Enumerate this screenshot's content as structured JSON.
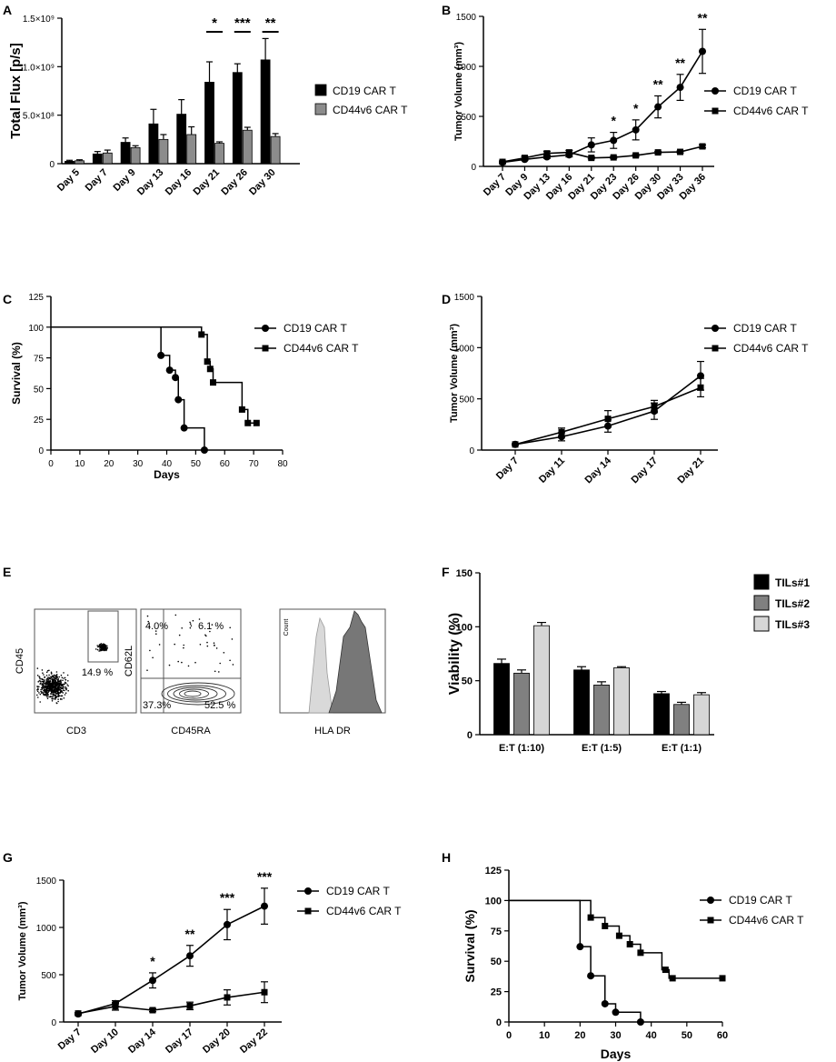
{
  "chart_data": [
    {
      "panel": "A",
      "type": "bar",
      "ylabel": "Total Flux [p/s]",
      "ytick_labels": [
        "0",
        "5.0×10⁸",
        "1.0×10⁹",
        "1.5×10⁹"
      ],
      "ylim": [
        0,
        1500000000
      ],
      "yticks": [
        0,
        500000000,
        1000000000,
        1500000000
      ],
      "categories": [
        "Day 5",
        "Day 7",
        "Day 9",
        "Day 13",
        "Day 16",
        "Day 21",
        "Day 26",
        "Day 30"
      ],
      "series": [
        {
          "name": "CD19 CAR T",
          "color": "#000000",
          "values": [
            25000000,
            100000000,
            220000000,
            410000000,
            510000000,
            840000000,
            940000000,
            1070000000
          ],
          "errors": [
            10000000,
            25000000,
            45000000,
            150000000,
            150000000,
            210000000,
            90000000,
            220000000
          ]
        },
        {
          "name": "CD44v6 CAR T",
          "color": "#8c8c8c",
          "values": [
            30000000,
            110000000,
            165000000,
            250000000,
            300000000,
            210000000,
            345000000,
            280000000
          ],
          "errors": [
            10000000,
            30000000,
            20000000,
            50000000,
            80000000,
            15000000,
            30000000,
            30000000
          ]
        }
      ],
      "significance": [
        {
          "category": "Day 21",
          "label": "*"
        },
        {
          "category": "Day 26",
          "label": "***"
        },
        {
          "category": "Day 30",
          "label": "**"
        }
      ],
      "legend_position": "right"
    },
    {
      "panel": "B",
      "type": "line",
      "ylabel": "Tumor Volume (mm³)",
      "ylim": [
        0,
        1500
      ],
      "yticks": [
        0,
        500,
        1000,
        1500
      ],
      "categories": [
        "Day 7",
        "Day 9",
        "Day 13",
        "Day 16",
        "Day 21",
        "Day 23",
        "Day 26",
        "Day 30",
        "Day 33",
        "Day 36"
      ],
      "series": [
        {
          "name": "CD19 CAR T",
          "marker": "circle",
          "values": [
            40,
            70,
            95,
            115,
            215,
            260,
            365,
            595,
            790,
            1150
          ],
          "errors": [
            10,
            10,
            15,
            20,
            70,
            80,
            100,
            110,
            130,
            220
          ]
        },
        {
          "name": "CD44v6 CAR T",
          "marker": "square",
          "values": [
            45,
            85,
            130,
            140,
            85,
            90,
            110,
            140,
            145,
            200
          ],
          "errors": [
            10,
            15,
            20,
            20,
            10,
            10,
            10,
            10,
            10,
            15
          ]
        }
      ],
      "significance": [
        {
          "category": "Day 23",
          "label": "*"
        },
        {
          "category": "Day 26",
          "label": "*"
        },
        {
          "category": "Day 30",
          "label": "**"
        },
        {
          "category": "Day 33",
          "label": "**"
        },
        {
          "category": "Day 36",
          "label": "**"
        }
      ],
      "legend_position": "right"
    },
    {
      "panel": "C",
      "type": "line",
      "subtype": "survival",
      "xlabel": "Days",
      "ylabel": "Survival (%)",
      "xlim": [
        0,
        80
      ],
      "xticks": [
        0,
        10,
        20,
        30,
        40,
        50,
        60,
        70,
        80
      ],
      "ylim": [
        0,
        125
      ],
      "yticks": [
        0,
        25,
        50,
        75,
        100,
        125
      ],
      "series": [
        {
          "name": "CD19 CAR T",
          "marker": "circle",
          "steps": [
            [
              0,
              100
            ],
            [
              38,
              100
            ],
            [
              38,
              77
            ],
            [
              41,
              77
            ],
            [
              41,
              65
            ],
            [
              43,
              65
            ],
            [
              43,
              59
            ],
            [
              44,
              59
            ],
            [
              44,
              41
            ],
            [
              46,
              41
            ],
            [
              46,
              18
            ],
            [
              53,
              18
            ],
            [
              53,
              0
            ]
          ],
          "points": [
            [
              38,
              77
            ],
            [
              41,
              65
            ],
            [
              43,
              59
            ],
            [
              44,
              41
            ],
            [
              46,
              18
            ],
            [
              53,
              0
            ]
          ]
        },
        {
          "name": "CD44v6 CAR T",
          "marker": "square",
          "steps": [
            [
              0,
              100
            ],
            [
              52,
              100
            ],
            [
              52,
              94
            ],
            [
              54,
              94
            ],
            [
              54,
              72
            ],
            [
              55,
              72
            ],
            [
              55,
              66
            ],
            [
              56,
              66
            ],
            [
              56,
              55
            ],
            [
              66,
              55
            ],
            [
              66,
              33
            ],
            [
              68,
              33
            ],
            [
              68,
              22
            ],
            [
              72,
              22
            ]
          ],
          "points": [
            [
              52,
              94
            ],
            [
              54,
              72
            ],
            [
              55,
              66
            ],
            [
              56,
              55
            ],
            [
              66,
              33
            ],
            [
              68,
              22
            ],
            [
              71,
              22
            ]
          ]
        }
      ],
      "legend_position": "right"
    },
    {
      "panel": "D",
      "type": "line",
      "ylabel": "Tumor Volume (mm³)",
      "ylim": [
        0,
        1500
      ],
      "yticks": [
        0,
        500,
        1000,
        1500
      ],
      "categories": [
        "Day 7",
        "Day 11",
        "Day 14",
        "Day 17",
        "Day 21"
      ],
      "series": [
        {
          "name": "CD19 CAR T",
          "marker": "circle",
          "values": [
            55,
            130,
            235,
            380,
            725
          ],
          "errors": [
            5,
            40,
            60,
            80,
            140
          ]
        },
        {
          "name": "CD44v6 CAR T",
          "marker": "square",
          "values": [
            55,
            175,
            305,
            425,
            610
          ],
          "errors": [
            5,
            40,
            80,
            60,
            90
          ]
        }
      ],
      "legend_position": "right"
    },
    {
      "panel": "E",
      "type": "scatter",
      "subtype": "flow cytometry",
      "plots": [
        {
          "xlabel": "CD3",
          "ylabel": "CD45",
          "gate_label": "14.9 %"
        },
        {
          "xlabel": "CD45RA",
          "ylabel": "CD62L",
          "quadrants": [
            "4.0%",
            "6.1 %",
            "37.3%",
            "52.5 %"
          ]
        },
        {
          "xlabel": "HLA DR",
          "ylabel": "Count"
        }
      ]
    },
    {
      "panel": "F",
      "type": "bar",
      "ylabel": "Viability (%)",
      "ylim": [
        0,
        150
      ],
      "yticks": [
        0,
        50,
        100,
        150
      ],
      "categories": [
        "E:T (1:10)",
        "E:T (1:5)",
        "E:T (1:1)"
      ],
      "series": [
        {
          "name": "TILs#1",
          "color": "#000000",
          "values": [
            66,
            60,
            38
          ],
          "errors": [
            4,
            3,
            2
          ]
        },
        {
          "name": "TILs#2",
          "color": "#808080",
          "values": [
            57,
            46,
            28
          ],
          "errors": [
            3,
            3,
            2
          ]
        },
        {
          "name": "TILs#3",
          "color": "#d6d6d6",
          "values": [
            101,
            62,
            37
          ],
          "errors": [
            3,
            1,
            2
          ]
        }
      ],
      "legend_position": "top-right"
    },
    {
      "panel": "G",
      "type": "line",
      "ylabel": "Tumor Volume (mm³)",
      "ylim": [
        0,
        1500
      ],
      "yticks": [
        0,
        500,
        1000,
        1500
      ],
      "categories": [
        "Day 7",
        "Day 10",
        "Day 14",
        "Day 17",
        "Day 20",
        "Day 22"
      ],
      "series": [
        {
          "name": "CD19 CAR T",
          "marker": "circle",
          "values": [
            85,
            195,
            440,
            700,
            1030,
            1225
          ],
          "errors": [
            10,
            30,
            80,
            110,
            160,
            190
          ]
        },
        {
          "name": "CD44v6 CAR T",
          "marker": "square",
          "values": [
            90,
            165,
            125,
            170,
            260,
            315
          ],
          "errors": [
            10,
            40,
            15,
            40,
            80,
            110
          ]
        }
      ],
      "significance": [
        {
          "category": "Day 14",
          "label": "*"
        },
        {
          "category": "Day 17",
          "label": "**"
        },
        {
          "category": "Day 20",
          "label": "***"
        },
        {
          "category": "Day 22",
          "label": "***"
        }
      ],
      "legend_position": "right"
    },
    {
      "panel": "H",
      "type": "line",
      "subtype": "survival",
      "xlabel": "Days",
      "ylabel": "Survival (%)",
      "xlim": [
        0,
        60
      ],
      "xticks": [
        0,
        10,
        20,
        30,
        40,
        50,
        60
      ],
      "ylim": [
        0,
        125
      ],
      "yticks": [
        0,
        25,
        50,
        75,
        100,
        125
      ],
      "series": [
        {
          "name": "CD19 CAR T",
          "marker": "circle",
          "steps": [
            [
              0,
              100
            ],
            [
              20,
              100
            ],
            [
              20,
              62
            ],
            [
              23,
              62
            ],
            [
              23,
              38
            ],
            [
              27,
              38
            ],
            [
              27,
              15
            ],
            [
              30,
              15
            ],
            [
              30,
              8
            ],
            [
              37,
              8
            ],
            [
              37,
              0
            ]
          ],
          "points": [
            [
              20,
              62
            ],
            [
              23,
              38
            ],
            [
              27,
              15
            ],
            [
              30,
              8
            ],
            [
              37,
              0
            ]
          ]
        },
        {
          "name": "CD44v6 CAR T",
          "marker": "square",
          "steps": [
            [
              0,
              100
            ],
            [
              23,
              100
            ],
            [
              23,
              86
            ],
            [
              27,
              86
            ],
            [
              27,
              79
            ],
            [
              31,
              79
            ],
            [
              31,
              71
            ],
            [
              34,
              71
            ],
            [
              34,
              64
            ],
            [
              37,
              64
            ],
            [
              37,
              57
            ],
            [
              43,
              57
            ],
            [
              43,
              43
            ],
            [
              45,
              43
            ],
            [
              45,
              36
            ],
            [
              60,
              36
            ]
          ],
          "points": [
            [
              23,
              86
            ],
            [
              27,
              79
            ],
            [
              31,
              71
            ],
            [
              34,
              64
            ],
            [
              37,
              57
            ],
            [
              44,
              43
            ],
            [
              46,
              36
            ],
            [
              60,
              36
            ]
          ]
        }
      ],
      "legend_position": "right"
    }
  ]
}
